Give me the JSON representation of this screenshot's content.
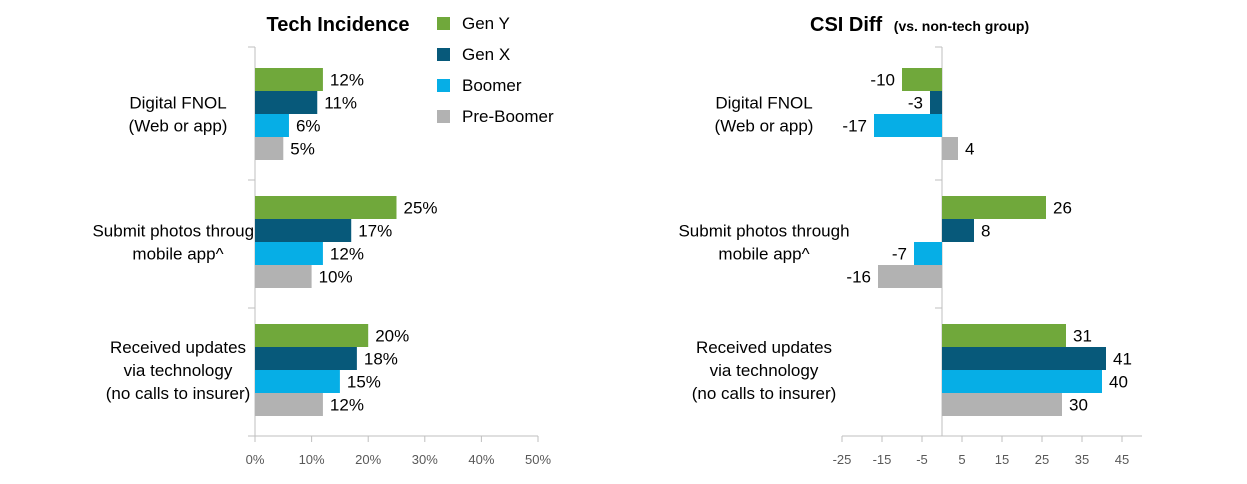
{
  "series_colors": [
    "#70a83b",
    "#07597a",
    "#06aee6",
    "#b2b2b2"
  ],
  "legend": [
    "Gen Y",
    "Gen X",
    "Boomer",
    "Pre-Boomer"
  ],
  "chart_data": [
    {
      "type": "bar",
      "orientation": "horizontal",
      "title": "Tech Incidence",
      "subtitle": "",
      "categories": [
        [
          "Digital FNOL",
          "(Web or app)"
        ],
        [
          "Submit photos through",
          "mobile app^"
        ],
        [
          "Received updates",
          "via technology",
          "(no calls to insurer)"
        ]
      ],
      "series": [
        {
          "name": "Gen Y",
          "values": [
            12,
            25,
            20
          ]
        },
        {
          "name": "Gen X",
          "values": [
            11,
            17,
            18
          ]
        },
        {
          "name": "Boomer",
          "values": [
            6,
            12,
            15
          ]
        },
        {
          "name": "Pre-Boomer",
          "values": [
            5,
            10,
            12
          ]
        }
      ],
      "value_suffix": "%",
      "xlim": [
        0,
        50
      ],
      "ticks": [
        "0%",
        "10%",
        "20%",
        "30%",
        "40%",
        "50%"
      ],
      "tick_values": [
        0,
        10,
        20,
        30,
        40,
        50
      ],
      "grid": false
    },
    {
      "type": "bar",
      "orientation": "horizontal",
      "title": "CSI Diff",
      "subtitle": "(vs. non-tech group)",
      "categories": [
        [
          "Digital FNOL",
          "(Web or app)"
        ],
        [
          "Submit photos through",
          "mobile app^"
        ],
        [
          "Received updates",
          "via technology",
          "(no calls to insurer)"
        ]
      ],
      "series": [
        {
          "name": "Gen Y",
          "values": [
            -10,
            26,
            31
          ]
        },
        {
          "name": "Gen X",
          "values": [
            -3,
            8,
            41
          ]
        },
        {
          "name": "Boomer",
          "values": [
            -17,
            -7,
            40
          ]
        },
        {
          "name": "Pre-Boomer",
          "values": [
            4,
            -16,
            30
          ]
        }
      ],
      "value_suffix": "",
      "xlim": [
        -25,
        50
      ],
      "ticks": [
        "-25",
        "-15",
        "-5",
        "5",
        "15",
        "25",
        "35",
        "45"
      ],
      "tick_values": [
        -25,
        -15,
        -5,
        5,
        15,
        25,
        35,
        45
      ],
      "grid": false
    }
  ]
}
